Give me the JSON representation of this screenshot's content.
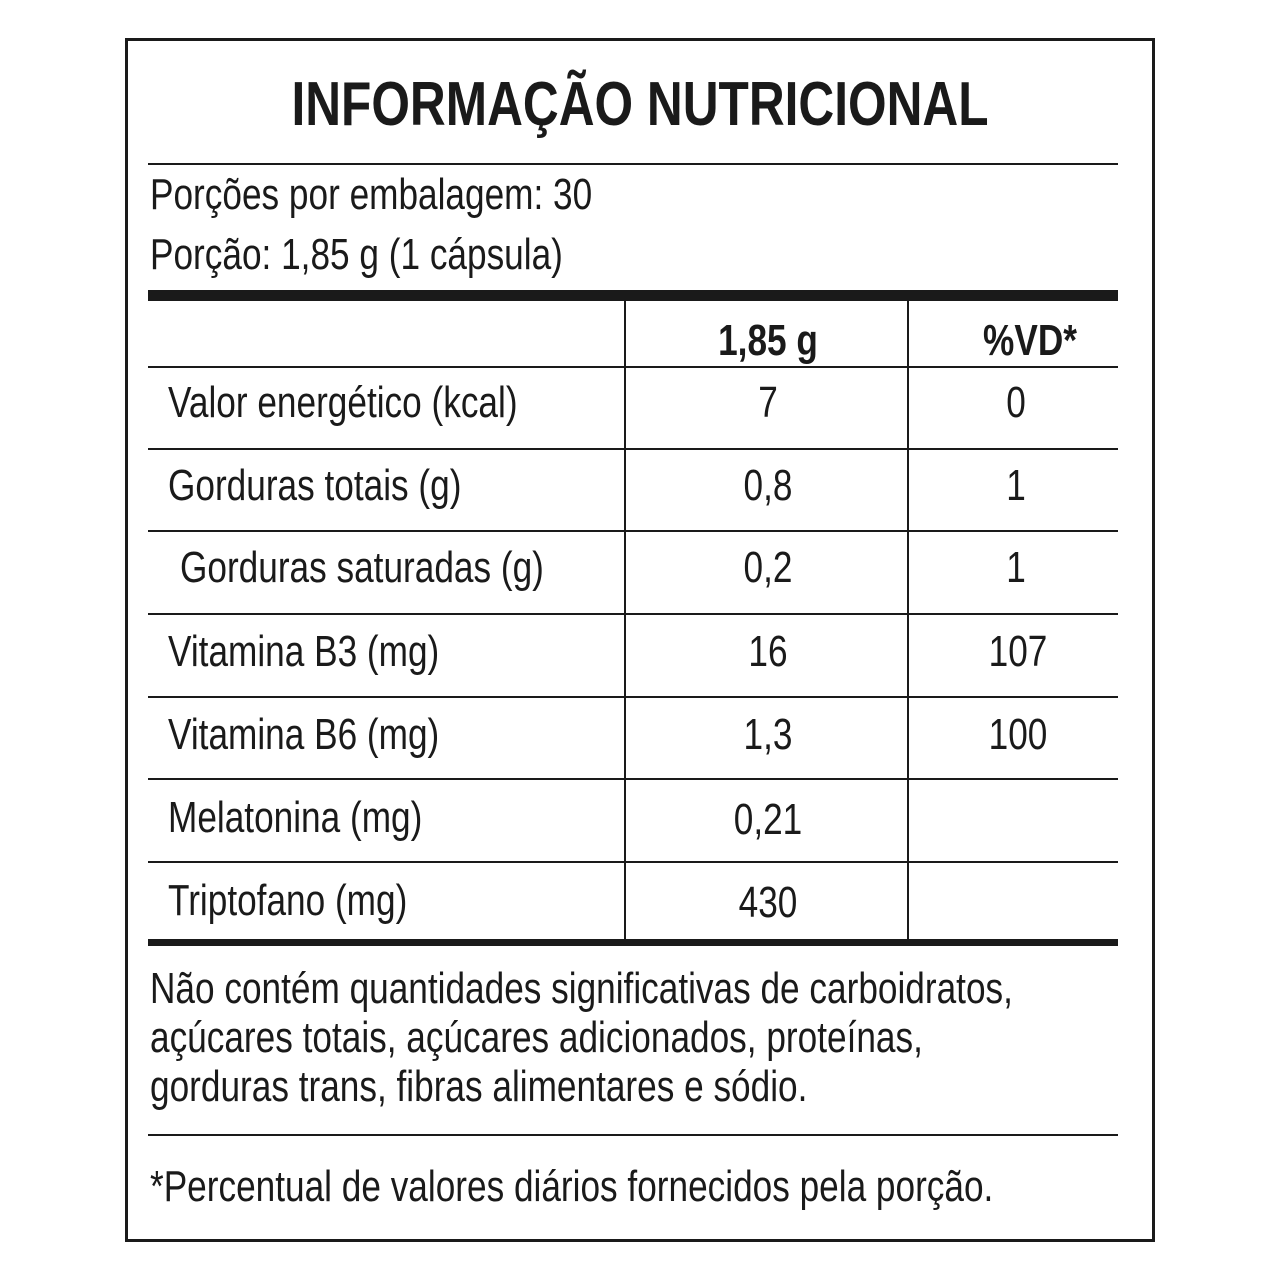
{
  "title": "INFORMAÇÃO NUTRICIONAL",
  "servings_per_package": "Porções por embalagem: 30",
  "serving_size": "Porção: 1,85 g (1 cápsula)",
  "table": {
    "headers": [
      "",
      "1,85 g",
      "%VD*"
    ],
    "rows": [
      {
        "name": "Valor energético (kcal)",
        "amount": "7",
        "dv": "0"
      },
      {
        "name": "Gorduras totais (g)",
        "amount": "0,8",
        "dv": "1"
      },
      {
        "name": "Gorduras saturadas (g)",
        "amount": "0,2",
        "dv": "1"
      },
      {
        "name": "Vitamina B3 (mg)",
        "amount": "16",
        "dv": "107"
      },
      {
        "name": "Vitamina B6 (mg)",
        "amount": "1,3",
        "dv": "100"
      },
      {
        "name": "Melatonina (mg)",
        "amount": "0,21",
        "dv": ""
      },
      {
        "name": "Triptofano (mg)",
        "amount": "430",
        "dv": ""
      }
    ]
  },
  "footnote_lines": [
    "Não contém quantidades significativas de carboidratos,",
    "açúcares totais, açúcares adicionados, proteínas,",
    "gorduras trans, fibras alimentares e sódio."
  ],
  "dv_note": "*Percentual de valores diários fornecidos pela porção."
}
